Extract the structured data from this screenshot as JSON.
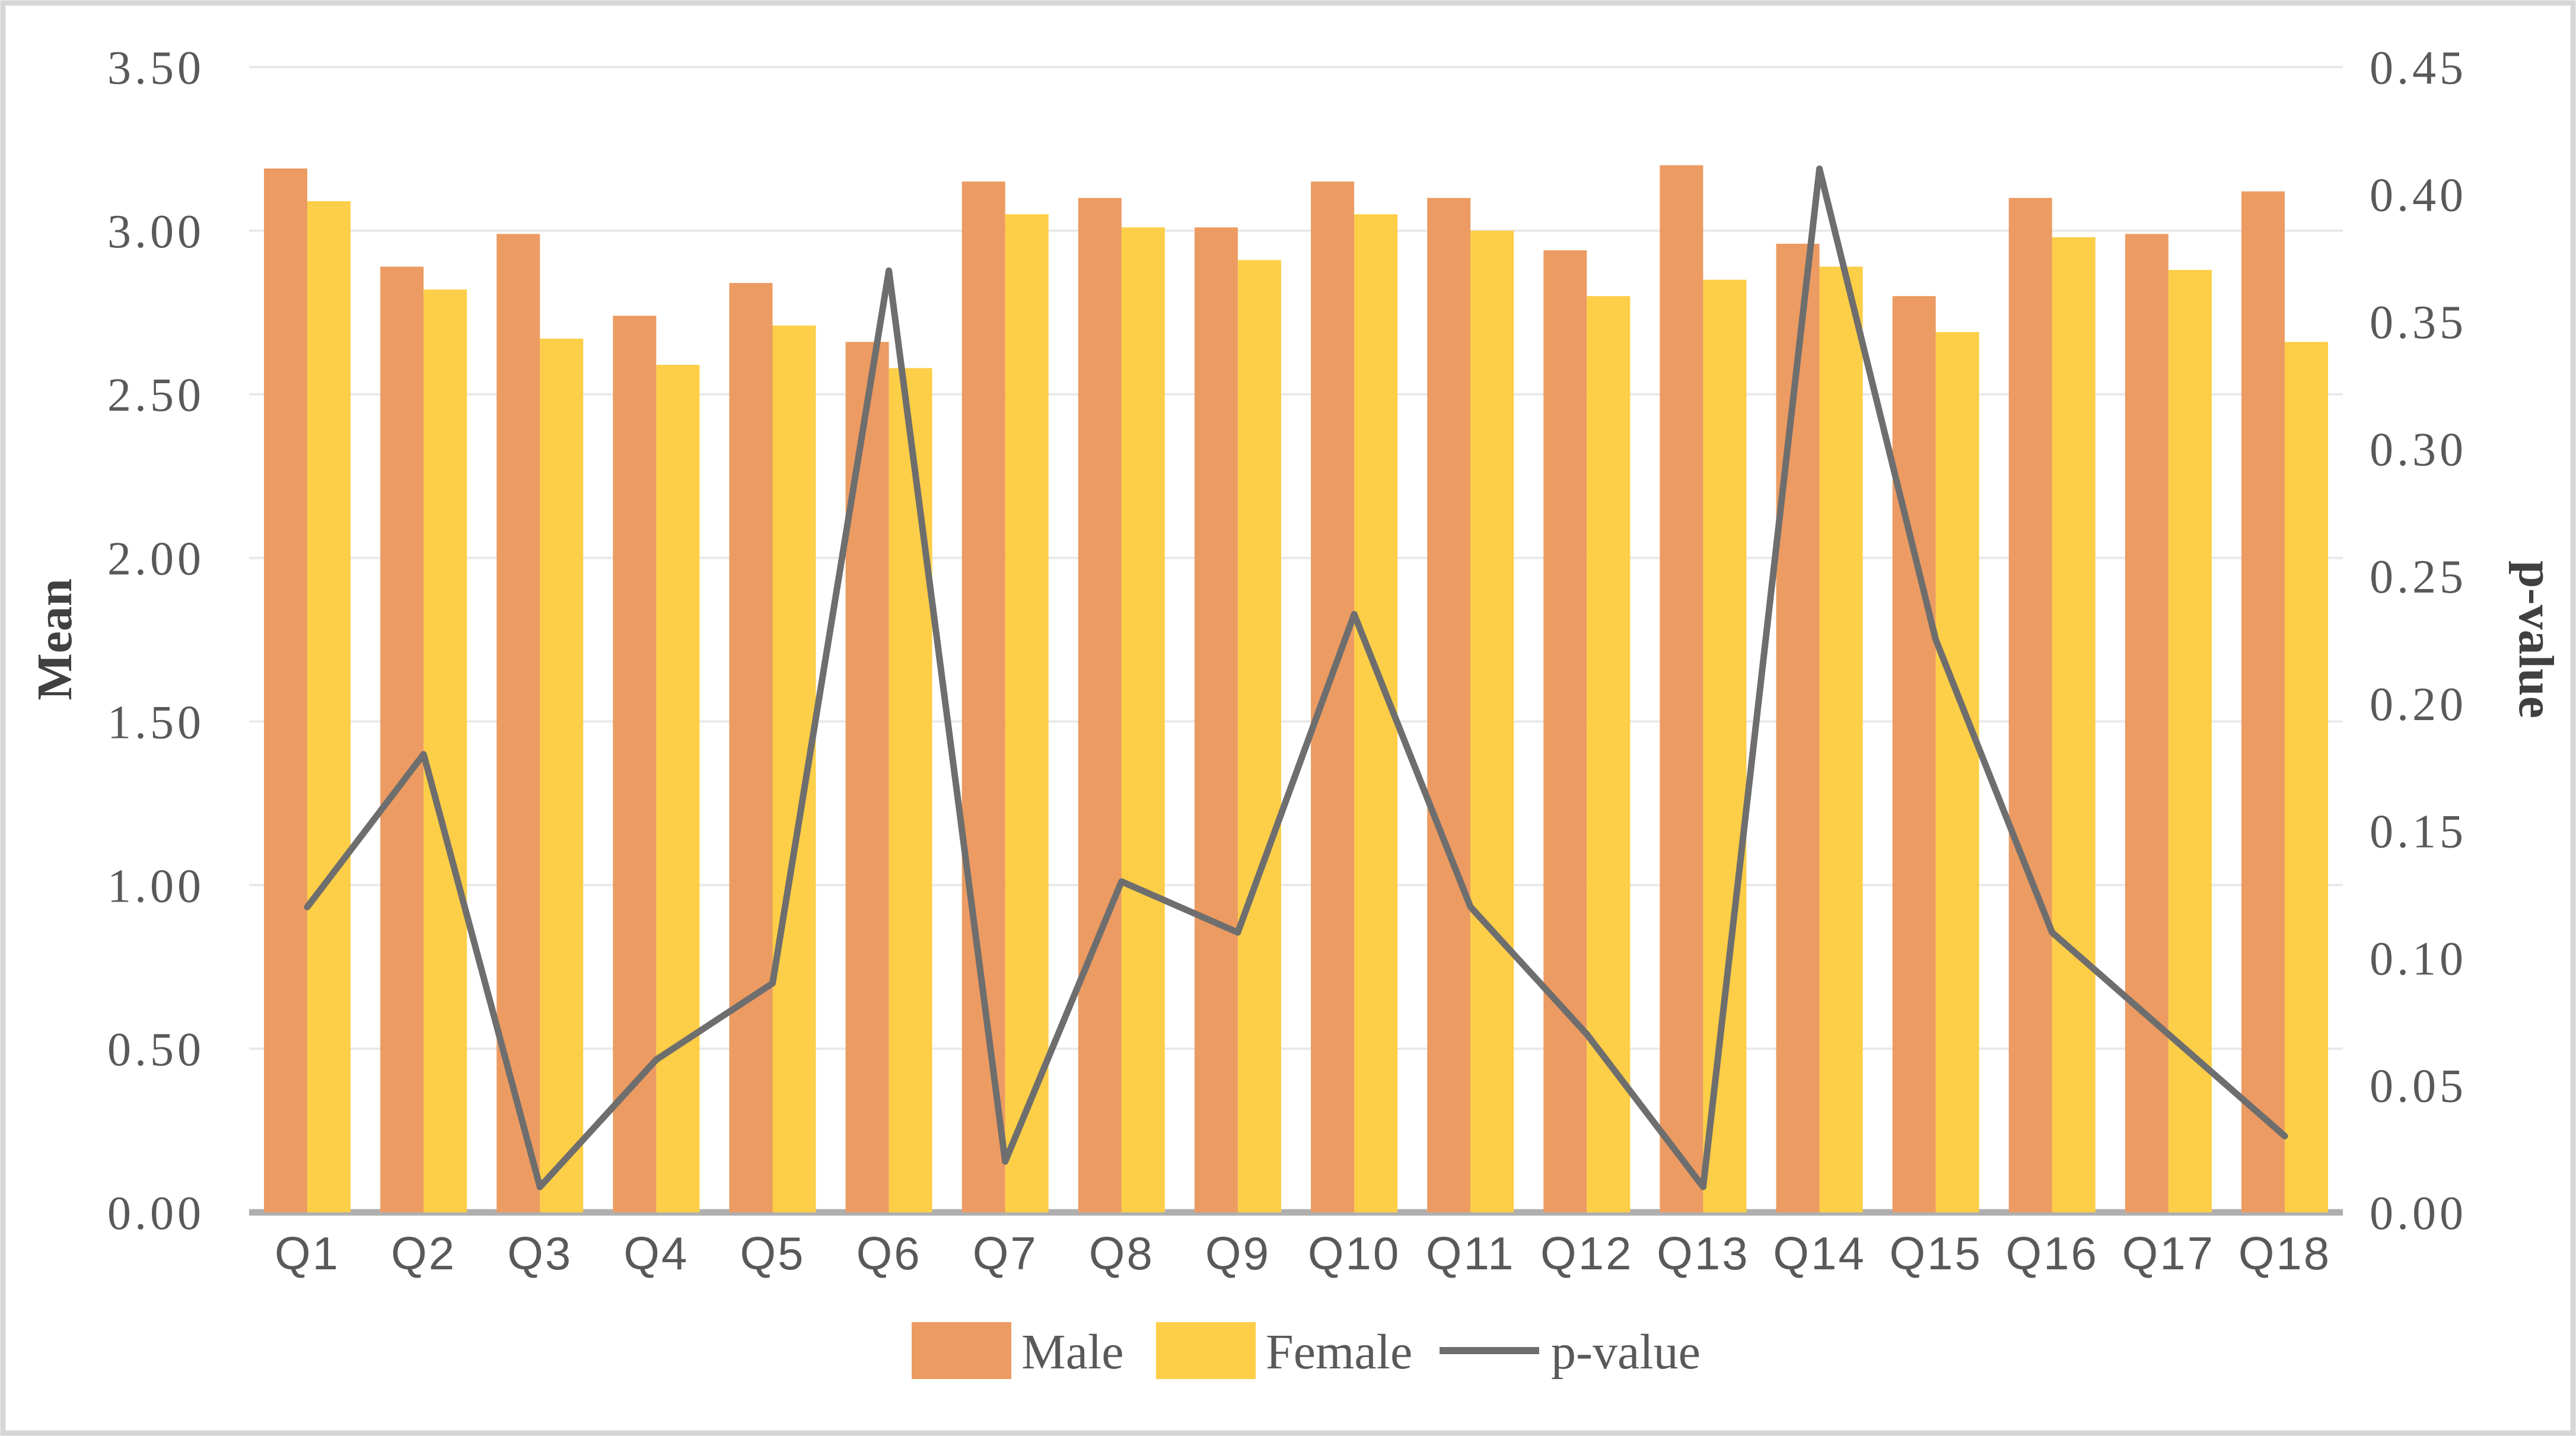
{
  "figure": {
    "background_color": "#FFFFFF",
    "border_color": "#D6D6D6",
    "gridline_color": "#E9E9E9",
    "axis_line_color": "#AFAFAF",
    "text_color": "#595959"
  },
  "chart_data": {
    "type": "bar",
    "subtype": "grouped-bars-with-line-on-secondary-axis",
    "title": "",
    "categories": [
      "Q1",
      "Q2",
      "Q3",
      "Q4",
      "Q5",
      "Q6",
      "Q7",
      "Q8",
      "Q9",
      "Q10",
      "Q11",
      "Q12",
      "Q13",
      "Q14",
      "Q15",
      "Q16",
      "Q17",
      "Q18"
    ],
    "series": [
      {
        "name": "Male",
        "axis": "left",
        "color": "#EC9B62",
        "values": [
          3.19,
          2.89,
          2.99,
          2.74,
          2.84,
          2.66,
          3.15,
          3.1,
          3.01,
          3.15,
          3.1,
          2.94,
          3.2,
          2.96,
          2.8,
          3.1,
          2.99,
          3.12
        ]
      },
      {
        "name": "Female",
        "axis": "left",
        "color": "#FDCE47",
        "values": [
          3.09,
          2.82,
          2.67,
          2.59,
          2.71,
          2.58,
          3.05,
          3.01,
          2.91,
          3.05,
          3.0,
          2.8,
          2.85,
          2.89,
          2.69,
          2.98,
          2.88,
          2.66
        ]
      }
    ],
    "line_series": {
      "name": "p-value",
      "axis": "right",
      "color": "#6E6E6E",
      "values": [
        0.12,
        0.18,
        0.01,
        0.06,
        0.09,
        0.37,
        0.02,
        0.13,
        0.11,
        0.235,
        0.12,
        0.07,
        0.01,
        0.41,
        0.225,
        0.11,
        0.07,
        0.03
      ]
    },
    "left_axis": {
      "title": "Mean",
      "min": 0.0,
      "max": 3.5,
      "step": 0.5,
      "tick_format": "0.00"
    },
    "right_axis": {
      "title": "p-value",
      "min": 0.0,
      "max": 0.45,
      "step": 0.05,
      "tick_format": "0.00"
    },
    "legend": {
      "position": "bottom",
      "entries": [
        "Male",
        "Female",
        "p-value"
      ]
    },
    "grid": "horizontal-only"
  }
}
